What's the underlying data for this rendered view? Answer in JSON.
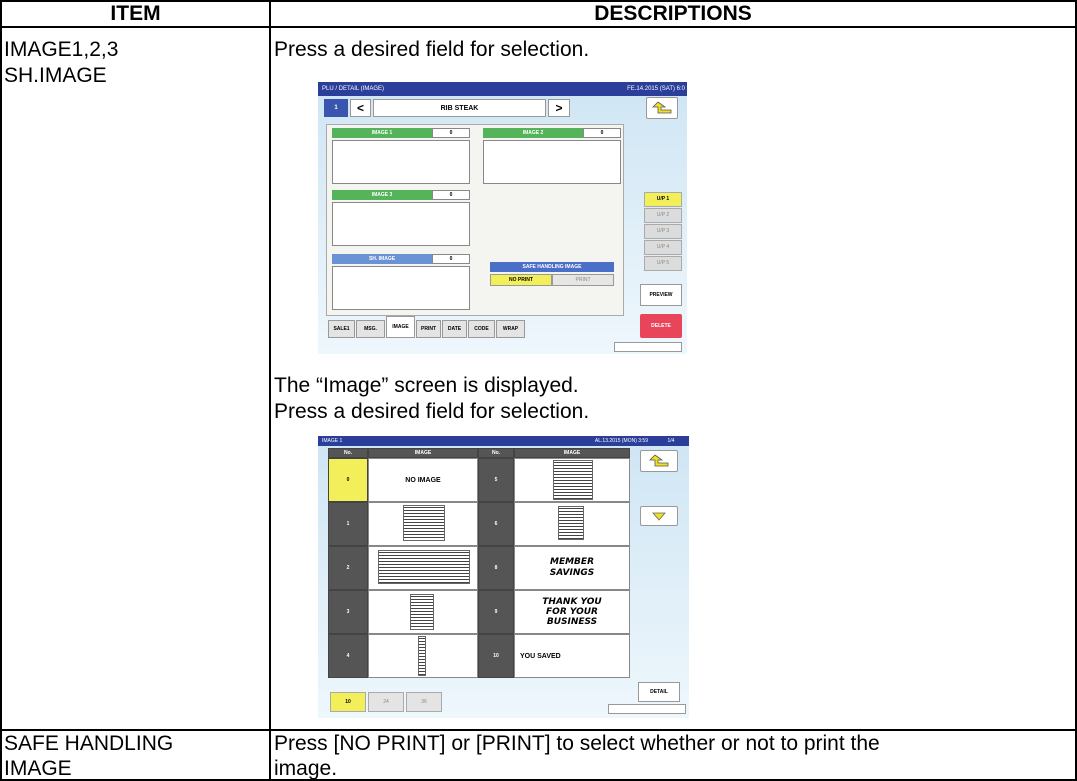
{
  "table": {
    "headers": [
      "ITEM",
      "DESCRIPTIONS"
    ],
    "rows": [
      {
        "item": [
          "IMAGE1,2,3",
          "SH.IMAGE"
        ],
        "description": {
          "text1": "Press a desired field for selection.",
          "screen1": {
            "title": "PLU / DETAIL (IMAGE)",
            "datetime": "FE.14.2015 (SAT) 6:0",
            "plu_no": 1,
            "prev": "<",
            "name": "RIB STEAK",
            "next": ">",
            "fields": [
              {
                "label": "IMAGE 1",
                "value": 0
              },
              {
                "label": "IMAGE 2",
                "value": 0
              },
              {
                "label": "IMAGE 3",
                "value": 0
              },
              {
                "label": "SH. IMAGE",
                "value": 0
              }
            ],
            "safe_handling": {
              "label": "SAFE HANDLING IMAGE",
              "options": [
                "NO PRINT",
                "PRINT"
              ]
            },
            "unit_prices": [
              "U/P 1",
              "U/P 2",
              "U/P 3",
              "U/P 4",
              "U/P 5"
            ],
            "preview": "PREVIEW",
            "delete": "DELETE",
            "tabs": [
              "SALE1",
              "MSG.",
              "IMAGE",
              "PRINT",
              "DATE",
              "CODE",
              "WRAP"
            ]
          },
          "text2": "The “Image” screen is displayed.",
          "text3": "Press a desired field for selection.",
          "screen2": {
            "title": "IMAGE 1",
            "datetime": "AL.13.2015 (MON) 3:59",
            "page": "1/4",
            "headers": [
              "No.",
              "IMAGE",
              "No.",
              "IMAGE"
            ],
            "rows": [
              {
                "left": {
                  "no": 0,
                  "image": [
                    "NO IMAGE"
                  ]
                },
                "right": {
                  "no": 5
                }
              },
              {
                "left": {
                  "no": 1
                },
                "right": {
                  "no": 6
                }
              },
              {
                "left": {
                  "no": 2
                },
                "right": {
                  "no": 8,
                  "image": [
                    "MEMBER",
                    "SAVINGS"
                  ]
                }
              },
              {
                "left": {
                  "no": 3
                },
                "right": {
                  "no": 9,
                  "image": [
                    "THANK YOU",
                    "FOR YOUR",
                    "BUSINESS"
                  ]
                }
              },
              {
                "left": {
                  "no": 4
                },
                "right": {
                  "no": 10,
                  "image": [
                    "YOU SAVED"
                  ]
                }
              }
            ],
            "detail": "DETAIL",
            "tabs": [
              10,
              24,
              36
            ]
          }
        }
      },
      {
        "item": [
          "SAFE HANDLING",
          "IMAGE"
        ],
        "description": [
          "Press [NO PRINT] or [PRINT] to select whether or not to print the",
          "image."
        ]
      }
    ]
  }
}
